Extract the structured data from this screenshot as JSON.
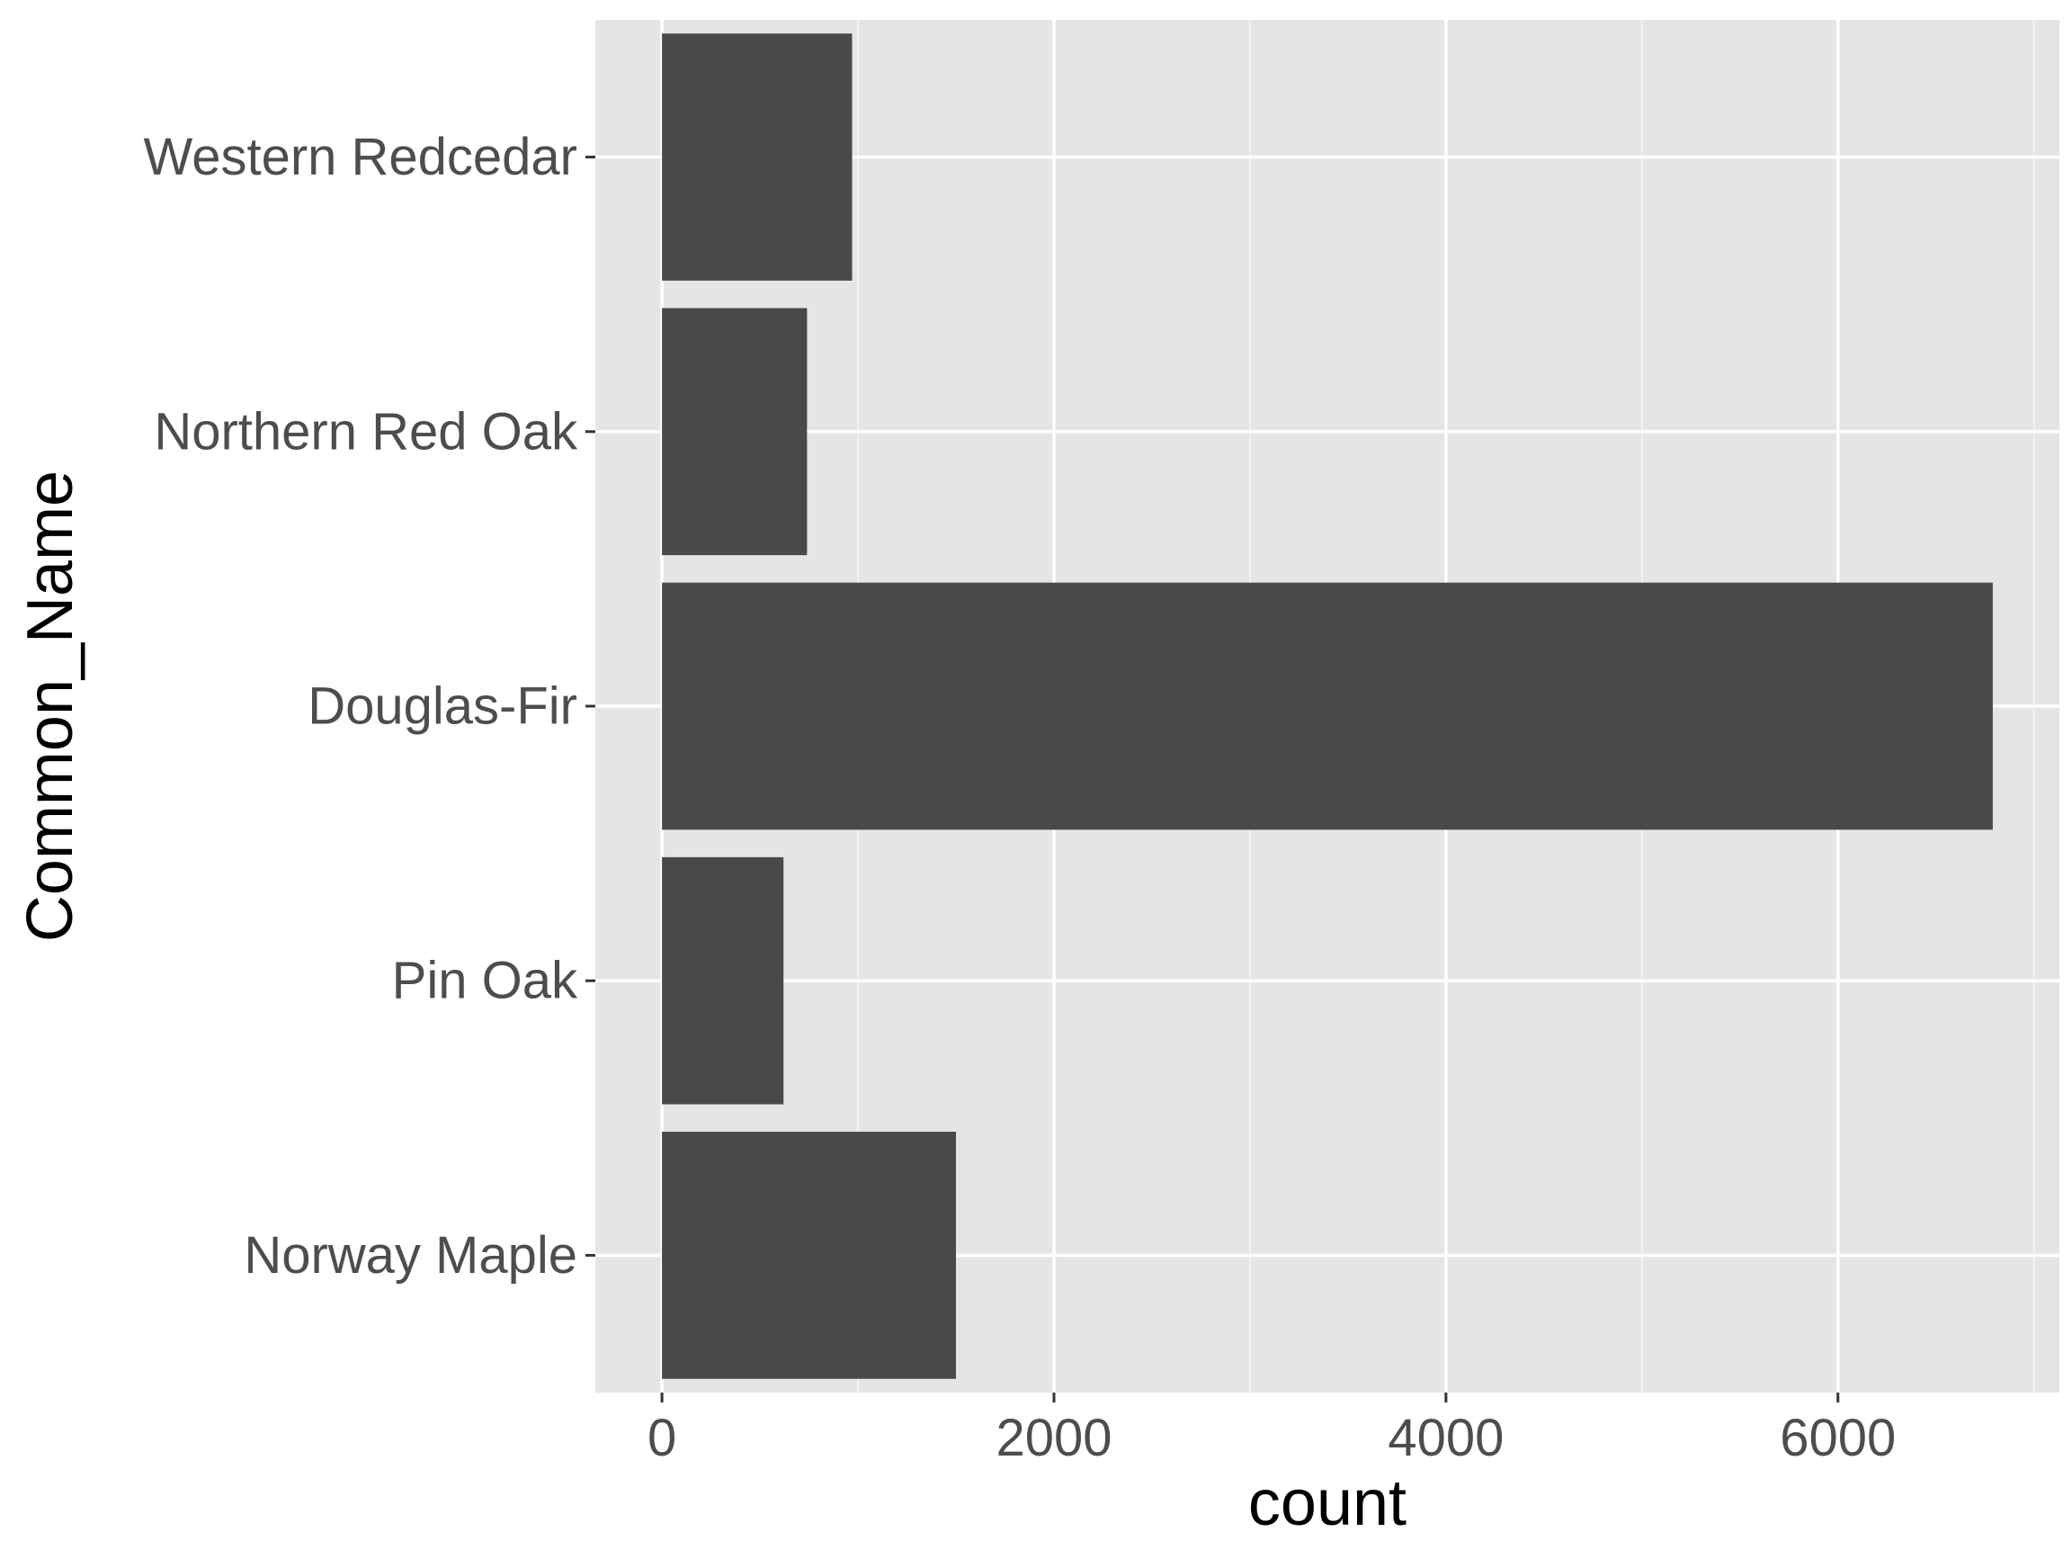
{
  "colors": {
    "panel_background": "#e5e5e5",
    "grid_major": "#ffffff",
    "grid_minor": "#f2f2f2",
    "bar_fill": "#494949",
    "tick_label": "#4d4d4d",
    "axis_title": "#000000",
    "page_background": "#ffffff"
  },
  "chart_data": {
    "type": "bar",
    "orientation": "horizontal",
    "title": "",
    "xlabel": "count",
    "ylabel": "Common_Name",
    "categories": [
      "Western Redcedar",
      "Northern Red Oak",
      "Douglas-Fir",
      "Pin Oak",
      "Norway Maple"
    ],
    "values": [
      970,
      740,
      6790,
      620,
      1500
    ],
    "xlim": [
      -340,
      7130
    ],
    "xticks": [
      0,
      2000,
      4000,
      6000
    ],
    "xtick_labels": [
      "0",
      "2000",
      "4000",
      "6000"
    ],
    "grid": true,
    "legend": "none"
  }
}
